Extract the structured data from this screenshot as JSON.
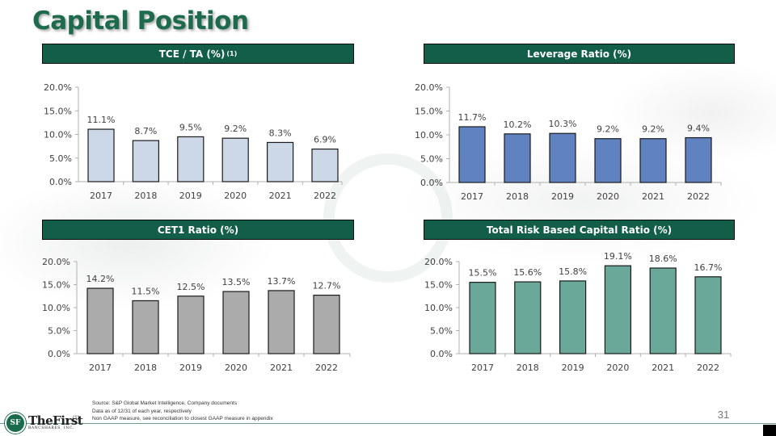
{
  "page": {
    "title": "Capital Position",
    "page_number": "31",
    "footnotes": [
      "Source: S&P Global Market Intelligence, Company documents",
      "Data as of 12/31 of each year, respectively",
      "Non GAAP measure, see reconciliation to closest GAAP measure in appendix"
    ],
    "footnote_marker": "(1)",
    "logo": {
      "emblem": "SF",
      "name": "TheFirst",
      "subtitle": "BANCSHARES, INC."
    }
  },
  "colors": {
    "header_bg": "#125e48",
    "title": "#1d6a4d",
    "tce_bar": "#ccd7e8",
    "leverage_bar": "#6082c0",
    "cet1_bar": "#ababab",
    "total_risk_bar": "#6aa899"
  },
  "chart_data": [
    {
      "id": "tce-ta",
      "type": "bar",
      "title": "TCE / TA (%)",
      "title_superscript": "(1)",
      "categories": [
        "2017",
        "2018",
        "2019",
        "2020",
        "2021",
        "2022"
      ],
      "values": [
        11.1,
        8.7,
        9.5,
        9.2,
        8.3,
        6.9
      ],
      "data_labels": [
        "11.1%",
        "8.7%",
        "9.5%",
        "9.2%",
        "8.3%",
        "6.9%"
      ],
      "yticks": [
        "0.0%",
        "5.0%",
        "10.0%",
        "15.0%",
        "20.0%"
      ],
      "ylim": [
        0,
        20
      ],
      "xlabel": "",
      "ylabel": "",
      "grid": false,
      "legend": "none",
      "color": "#ccd7e8"
    },
    {
      "id": "leverage",
      "type": "bar",
      "title": "Leverage Ratio (%)",
      "categories": [
        "2017",
        "2018",
        "2019",
        "2020",
        "2021",
        "2022"
      ],
      "values": [
        11.7,
        10.2,
        10.3,
        9.2,
        9.2,
        9.4
      ],
      "data_labels": [
        "11.7%",
        "10.2%",
        "10.3%",
        "9.2%",
        "9.2%",
        "9.4%"
      ],
      "yticks": [
        "0.0%",
        "5.0%",
        "10.0%",
        "15.0%",
        "20.0%"
      ],
      "ylim": [
        0,
        20
      ],
      "xlabel": "",
      "ylabel": "",
      "grid": false,
      "legend": "none",
      "color": "#6082c0"
    },
    {
      "id": "cet1",
      "type": "bar",
      "title": "CET1 Ratio (%)",
      "categories": [
        "2017",
        "2018",
        "2019",
        "2020",
        "2021",
        "2022"
      ],
      "values": [
        14.2,
        11.5,
        12.5,
        13.5,
        13.7,
        12.7
      ],
      "data_labels": [
        "14.2%",
        "11.5%",
        "12.5%",
        "13.5%",
        "13.7%",
        "12.7%"
      ],
      "yticks": [
        "0.0%",
        "5.0%",
        "10.0%",
        "15.0%",
        "20.0%"
      ],
      "ylim": [
        0,
        20
      ],
      "xlabel": "",
      "ylabel": "",
      "grid": false,
      "legend": "none",
      "color": "#ababab"
    },
    {
      "id": "total-risk",
      "type": "bar",
      "title": "Total Risk Based Capital Ratio (%)",
      "categories": [
        "2017",
        "2018",
        "2019",
        "2020",
        "2021",
        "2022"
      ],
      "values": [
        15.5,
        15.6,
        15.8,
        19.1,
        18.6,
        16.7
      ],
      "data_labels": [
        "15.5%",
        "15.6%",
        "15.8%",
        "19.1%",
        "18.6%",
        "16.7%"
      ],
      "yticks": [
        "0.0%",
        "5.0%",
        "10.0%",
        "15.0%",
        "20.0%"
      ],
      "ylim": [
        0,
        20
      ],
      "xlabel": "",
      "ylabel": "",
      "grid": false,
      "legend": "none",
      "color": "#6aa899"
    }
  ]
}
